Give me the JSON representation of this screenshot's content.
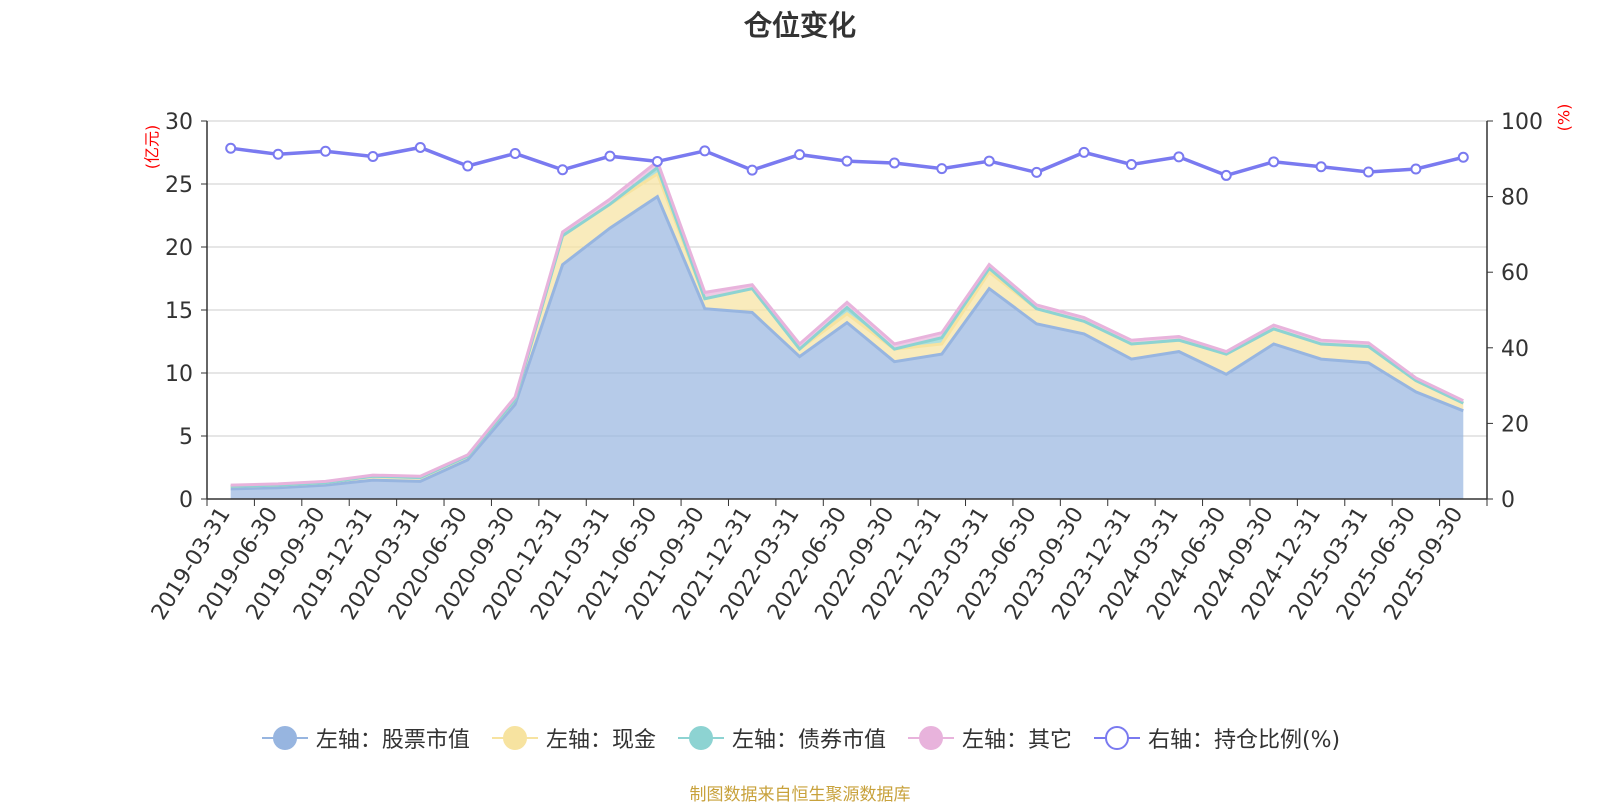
{
  "chart_data": {
    "type": "area",
    "title": "仓位变化",
    "y_left_unit": "(亿元)",
    "y_right_unit": "(%)",
    "ylim_left": [
      0,
      30
    ],
    "ylim_right": [
      0,
      100
    ],
    "y_left_ticks": [
      "0",
      "5",
      "10",
      "15",
      "20",
      "25",
      "30"
    ],
    "y_right_ticks": [
      "0",
      "20",
      "40",
      "60",
      "80",
      "100"
    ],
    "grid": true,
    "legend_position": "bottom",
    "x": [
      "2019-03-31",
      "2019-06-30",
      "2019-09-30",
      "2019-12-31",
      "2020-03-31",
      "2020-06-30",
      "2020-09-30",
      "2020-12-31",
      "2021-03-31",
      "2021-06-30",
      "2021-09-30",
      "2021-12-31",
      "2022-03-31",
      "2022-06-30",
      "2022-09-30",
      "2022-12-31",
      "2023-03-31",
      "2023-06-30",
      "2023-09-30",
      "2023-12-31",
      "2024-03-31",
      "2024-06-30",
      "2024-09-30",
      "2024-12-31",
      "2025-03-31",
      "2025-06-30",
      "2025-09-30"
    ],
    "series": [
      {
        "name": "左轴：股票市值",
        "axis": "left",
        "stacked": true,
        "color": "#97b5e0",
        "values": [
          0.8,
          0.9,
          1.1,
          1.5,
          1.4,
          3.1,
          7.5,
          18.6,
          21.5,
          24.0,
          15.1,
          14.8,
          11.3,
          14.0,
          10.9,
          11.5,
          16.7,
          13.9,
          13.1,
          11.1,
          11.7,
          9.9,
          12.3,
          11.1,
          10.8,
          8.5,
          7.0
        ]
      },
      {
        "name": "左轴：现金",
        "axis": "left",
        "stacked": true,
        "color": "#f7e3a0",
        "values": [
          0.2,
          0.2,
          0.2,
          0.3,
          0.3,
          0.3,
          0.4,
          2.3,
          1.9,
          1.8,
          0.8,
          1.9,
          0.6,
          0.7,
          1.0,
          0.8,
          1.3,
          1.2,
          1.0,
          1.2,
          0.9,
          1.6,
          1.2,
          1.2,
          1.3,
          0.9,
          0.6
        ]
      },
      {
        "name": "左轴：债券市值",
        "axis": "left",
        "stacked": true,
        "color": "#8dd3d2",
        "values": [
          0,
          0,
          0,
          0,
          0,
          0,
          0,
          0,
          0,
          0.5,
          0,
          0,
          0,
          0.5,
          0,
          0.5,
          0.3,
          0,
          0,
          0,
          0,
          0,
          0,
          0,
          0,
          0,
          0
        ]
      },
      {
        "name": "左轴：其它",
        "axis": "left",
        "stacked": true,
        "color": "#e8b3dc",
        "values": [
          0.1,
          0.1,
          0.1,
          0.1,
          0.1,
          0.1,
          0.2,
          0.3,
          0.4,
          0.5,
          0.5,
          0.3,
          0.4,
          0.4,
          0.4,
          0.4,
          0.3,
          0.3,
          0.3,
          0.3,
          0.3,
          0.2,
          0.3,
          0.3,
          0.3,
          0.2,
          0.2
        ]
      },
      {
        "name": "右轴：持仓比例(%)",
        "axis": "right",
        "type": "line",
        "color": "#7a7af0",
        "values": [
          92.8,
          91.2,
          92.0,
          90.6,
          93.0,
          88.1,
          91.4,
          87.1,
          90.7,
          89.3,
          92.1,
          87.0,
          91.1,
          89.4,
          88.9,
          87.4,
          89.4,
          86.4,
          91.7,
          88.5,
          90.5,
          85.6,
          89.2,
          87.9,
          86.5,
          87.3,
          90.4
        ]
      }
    ],
    "source_note": "制图数据来自恒生聚源数据库"
  },
  "legend_items": [
    {
      "label": "左轴：股票市值",
      "color": "#97b5e0",
      "marker": "filled-circle-icon"
    },
    {
      "label": "左轴：现金",
      "color": "#f7e3a0",
      "marker": "filled-circle-icon"
    },
    {
      "label": "左轴：债券市值",
      "color": "#8dd3d2",
      "marker": "filled-circle-icon"
    },
    {
      "label": "左轴：其它",
      "color": "#e8b3dc",
      "marker": "filled-circle-icon"
    },
    {
      "label": "右轴：持仓比例(%)",
      "color": "#7a7af0",
      "marker": "hollow-circle-icon"
    }
  ]
}
